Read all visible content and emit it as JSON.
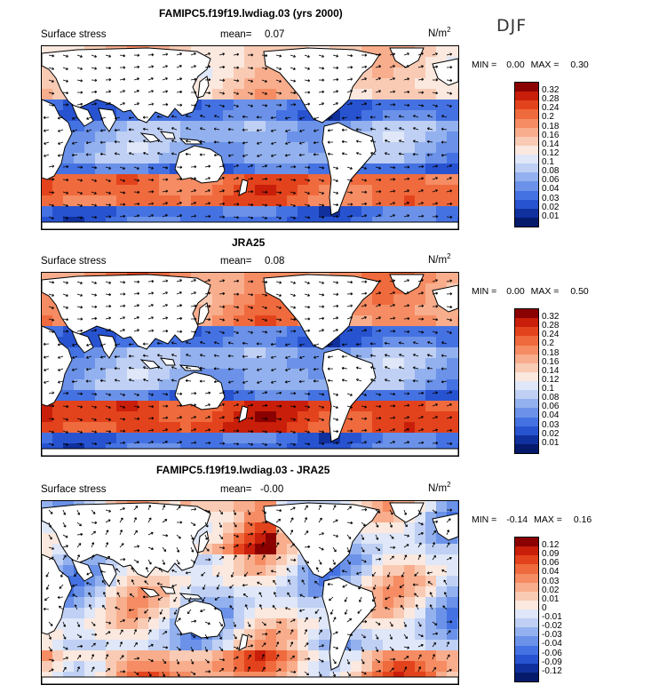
{
  "season": "DJF",
  "panels": [
    {
      "title": "FAMIPC5.f19f19.lwdiag.03 (yrs 2000)",
      "variable": "Surface stress",
      "mean_label": "mean=",
      "mean_value": "0.07",
      "units": "N/m",
      "units_exp": "2",
      "min_label": "MIN =",
      "min_value": "0.00",
      "max_label": "MAX =",
      "max_value": "0.30",
      "levels": [
        "0.32",
        "0.28",
        "0.24",
        "0.2",
        "0.18",
        "0.16",
        "0.14",
        "0.12",
        "0.1",
        "0.08",
        "0.06",
        "0.04",
        "0.03",
        "0.02",
        "0.01"
      ]
    },
    {
      "title": "JRA25",
      "variable": "Surface stress",
      "mean_label": "mean=",
      "mean_value": "0.08",
      "units": "N/m",
      "units_exp": "2",
      "min_label": "MIN =",
      "min_value": "0.00",
      "max_label": "MAX =",
      "max_value": "0.50",
      "levels": [
        "0.32",
        "0.28",
        "0.24",
        "0.2",
        "0.18",
        "0.16",
        "0.14",
        "0.12",
        "0.1",
        "0.08",
        "0.06",
        "0.04",
        "0.03",
        "0.02",
        "0.01"
      ]
    },
    {
      "title": "FAMIPC5.f19f19.lwdiag.03 - JRA25",
      "variable": "Surface stress",
      "mean_label": "mean=",
      "mean_value": "-0.00",
      "units": "N/m",
      "units_exp": "2",
      "min_label": "MIN =",
      "min_value": "-0.14",
      "max_label": "MAX =",
      "max_value": "0.16",
      "levels": [
        "0.12",
        "0.09",
        "0.06",
        "0.04",
        "0.03",
        "0.02",
        "0.01",
        "0",
        "-0.01",
        "-0.02",
        "-0.03",
        "-0.04",
        "-0.06",
        "-0.09",
        "-0.12"
      ]
    }
  ],
  "colors": {
    "scale_top_to_bottom": [
      "#8b0000",
      "#c81e0a",
      "#e3431c",
      "#ef6a3d",
      "#f58c63",
      "#f8ad8c",
      "#f9cbb4",
      "#fbe8de",
      "#dfe7f8",
      "#bfd0f4",
      "#93b1ee",
      "#6b92e8",
      "#4572e2",
      "#2853d0",
      "#10309e",
      "#051a6b"
    ],
    "land": "#ffffff",
    "coast": "#000000"
  }
}
